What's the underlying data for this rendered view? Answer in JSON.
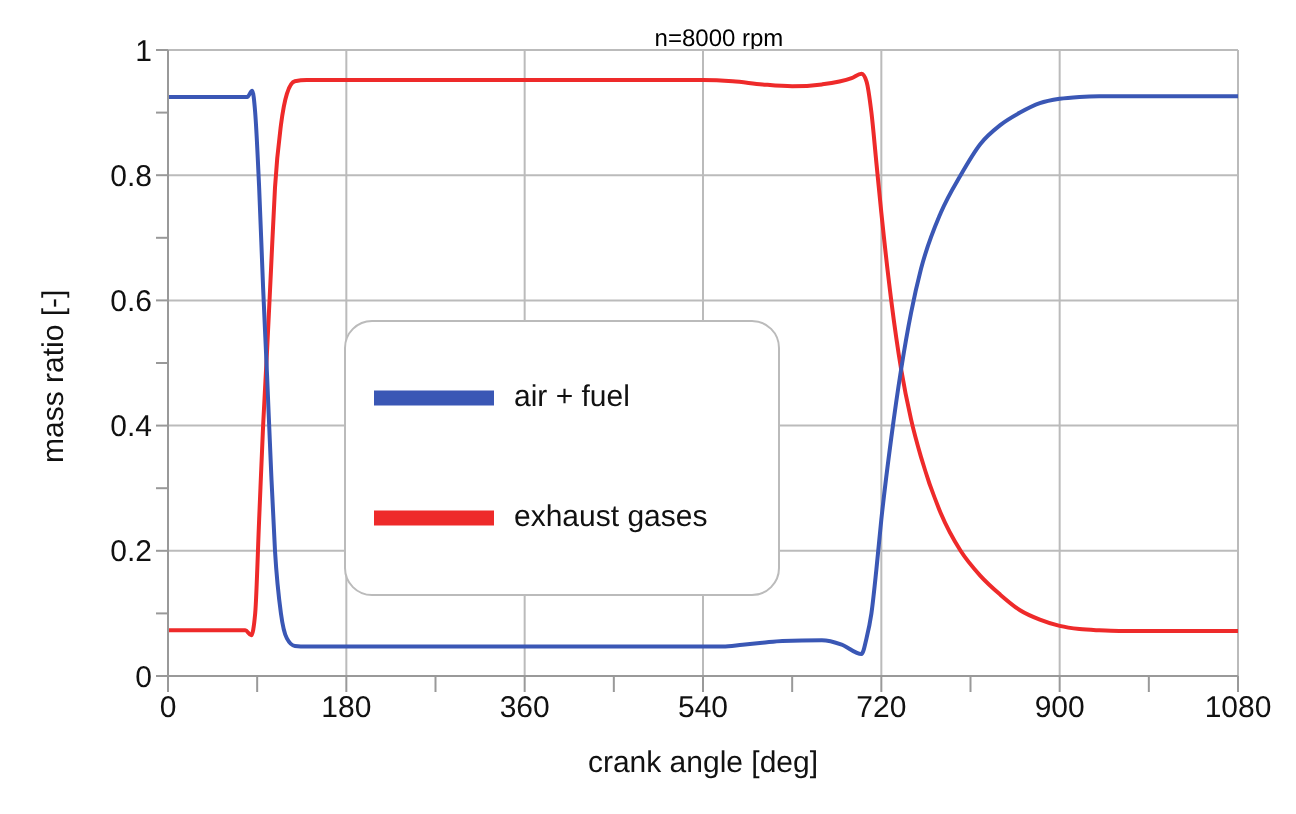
{
  "chart_data": {
    "type": "line",
    "title": "n=8000 rpm",
    "xlabel": "crank angle [deg]",
    "ylabel": "mass ratio [-]",
    "xlim": [
      0,
      1080
    ],
    "ylim": [
      0,
      1
    ],
    "xticks": [
      0,
      {
        "value": 90,
        "label": null
      },
      180,
      {
        "value": 270,
        "label": null
      },
      360,
      {
        "value": 450,
        "label": null
      },
      540,
      {
        "value": 630,
        "label": null
      },
      720,
      {
        "value": 810,
        "label": null
      },
      900,
      {
        "value": 990,
        "label": null
      },
      1080
    ],
    "yticks": [
      0,
      {
        "value": 0.1,
        "label": null
      },
      0.2,
      {
        "value": 0.3,
        "label": null
      },
      0.4,
      {
        "value": 0.5,
        "label": null
      },
      0.6,
      {
        "value": 0.7,
        "label": null
      },
      0.8,
      {
        "value": 0.9,
        "label": null
      },
      1
    ],
    "grid": true,
    "legend": "center left",
    "marker": "none",
    "line_style": "solid",
    "series": [
      {
        "name": "exhaust gases",
        "color": "#ee2a2a",
        "x": [
          0,
          78,
          84,
          88,
          92,
          96,
          100,
          104,
          108,
          114,
          120,
          128,
          140,
          300,
          540,
          570,
          600,
          630,
          660,
          690,
          700,
          705,
          710,
          715,
          720,
          730,
          740,
          750,
          760,
          780,
          800,
          820,
          840,
          860,
          880,
          900,
          920,
          940,
          960,
          1000,
          1080
        ],
        "values": [
          0.073,
          0.073,
          0.065,
          0.1,
          0.25,
          0.4,
          0.52,
          0.65,
          0.78,
          0.88,
          0.93,
          0.95,
          0.952,
          0.952,
          0.952,
          0.95,
          0.945,
          0.942,
          0.945,
          0.955,
          0.962,
          0.95,
          0.9,
          0.82,
          0.74,
          0.6,
          0.49,
          0.41,
          0.35,
          0.26,
          0.2,
          0.16,
          0.13,
          0.105,
          0.09,
          0.08,
          0.075,
          0.073,
          0.072,
          0.072,
          0.072
        ]
      },
      {
        "name": "air + fuel",
        "color": "#3a57b5",
        "x": [
          0,
          80,
          85,
          88,
          92,
          96,
          100,
          104,
          108,
          114,
          120,
          128,
          140,
          300,
          560,
          580,
          600,
          620,
          660,
          680,
          700,
          705,
          710,
          715,
          720,
          730,
          740,
          750,
          760,
          780,
          800,
          820,
          840,
          860,
          880,
          900,
          920,
          940,
          960,
          1000,
          1080
        ],
        "values": [
          0.925,
          0.925,
          0.935,
          0.9,
          0.78,
          0.62,
          0.48,
          0.33,
          0.2,
          0.1,
          0.06,
          0.048,
          0.047,
          0.047,
          0.047,
          0.05,
          0.053,
          0.056,
          0.057,
          0.05,
          0.035,
          0.06,
          0.1,
          0.17,
          0.25,
          0.38,
          0.49,
          0.58,
          0.65,
          0.74,
          0.8,
          0.85,
          0.88,
          0.9,
          0.915,
          0.922,
          0.925,
          0.926,
          0.926,
          0.926,
          0.926
        ]
      }
    ]
  }
}
